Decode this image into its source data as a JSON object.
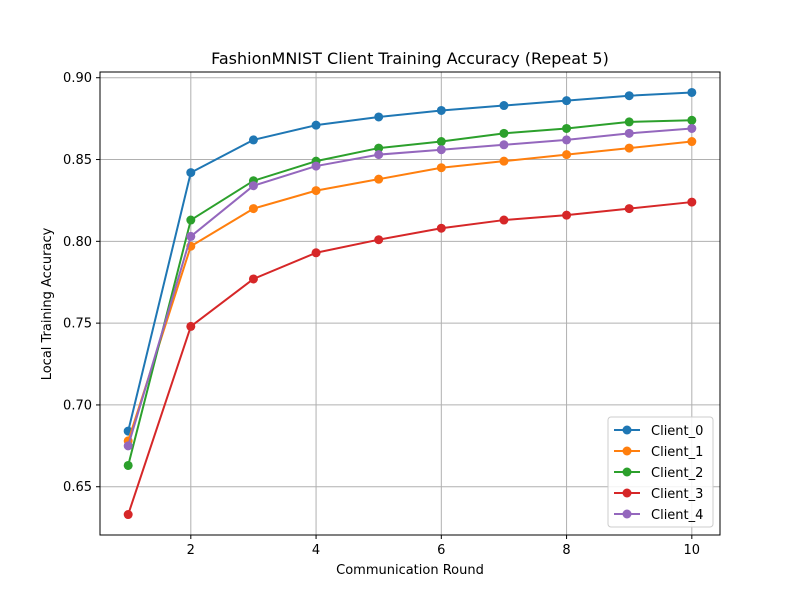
{
  "chart_data": {
    "type": "line",
    "title": "FashionMNIST Client Training Accuracy (Repeat 5)",
    "xlabel": "Communication Round",
    "ylabel": "Local Training Accuracy",
    "x": [
      1,
      2,
      3,
      4,
      5,
      6,
      7,
      8,
      9,
      10
    ],
    "xlim": [
      0.55,
      10.45
    ],
    "ylim": [
      0.6205,
      0.9035
    ],
    "xticks": [
      2,
      4,
      6,
      8,
      10
    ],
    "xtick_labels": [
      "2",
      "4",
      "6",
      "8",
      "10"
    ],
    "yticks": [
      0.65,
      0.7,
      0.75,
      0.8,
      0.85,
      0.9
    ],
    "ytick_labels": [
      "0.65",
      "0.70",
      "0.75",
      "0.80",
      "0.85",
      "0.90"
    ],
    "grid": true,
    "legend_position": "lower-right",
    "series": [
      {
        "name": "Client_0",
        "color": "#1f77b4",
        "values": [
          0.684,
          0.842,
          0.862,
          0.871,
          0.876,
          0.88,
          0.883,
          0.886,
          0.889,
          0.891
        ]
      },
      {
        "name": "Client_1",
        "color": "#ff7f0e",
        "values": [
          0.678,
          0.797,
          0.82,
          0.831,
          0.838,
          0.845,
          0.849,
          0.853,
          0.857,
          0.861
        ]
      },
      {
        "name": "Client_2",
        "color": "#2ca02c",
        "values": [
          0.663,
          0.813,
          0.837,
          0.849,
          0.857,
          0.861,
          0.866,
          0.869,
          0.873,
          0.874
        ]
      },
      {
        "name": "Client_3",
        "color": "#d62728",
        "values": [
          0.633,
          0.748,
          0.777,
          0.793,
          0.801,
          0.808,
          0.813,
          0.816,
          0.82,
          0.824
        ]
      },
      {
        "name": "Client_4",
        "color": "#9467bd",
        "values": [
          0.675,
          0.803,
          0.834,
          0.846,
          0.853,
          0.856,
          0.859,
          0.862,
          0.866,
          0.869
        ]
      }
    ]
  }
}
